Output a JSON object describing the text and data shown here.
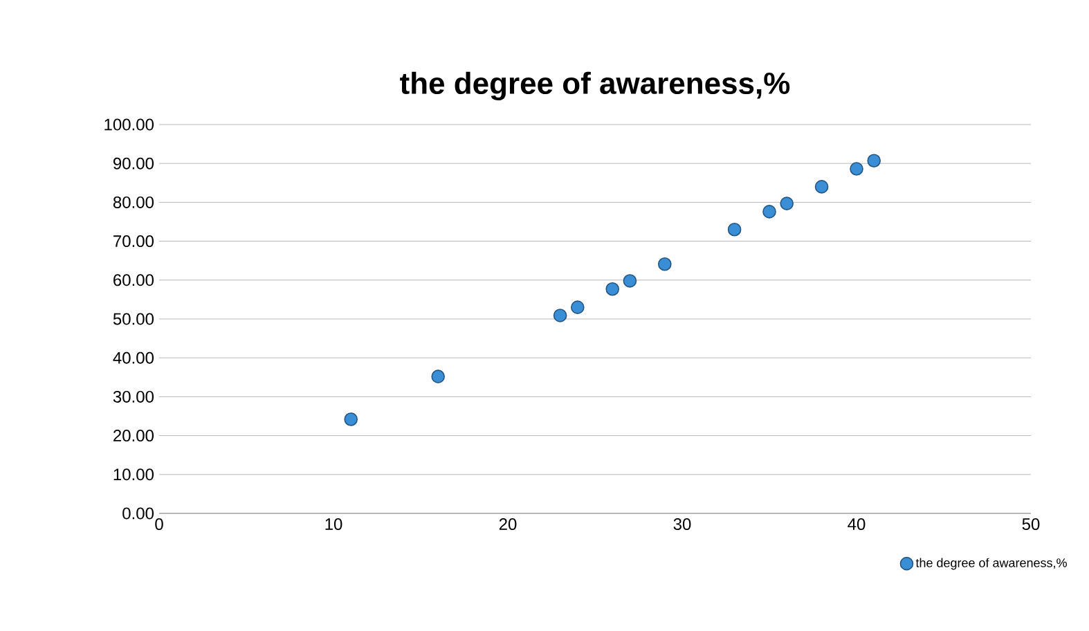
{
  "chart_data": {
    "type": "scatter",
    "title": "the degree of awareness,%",
    "x": [
      11,
      16,
      23,
      24,
      26,
      27,
      29,
      33,
      35,
      36,
      38,
      40,
      41
    ],
    "series": [
      {
        "name": "the degree of awareness,%",
        "color": "#3a8ed6",
        "values": [
          24.2,
          35.2,
          50.9,
          53.0,
          57.7,
          59.8,
          64.1,
          73.0,
          77.6,
          79.7,
          84.0,
          88.6,
          90.7
        ]
      }
    ],
    "xlim": [
      0,
      50
    ],
    "xticks": [
      0,
      10,
      20,
      30,
      40,
      50
    ],
    "ylim": [
      0,
      100
    ],
    "yticks": [
      {
        "value": 0,
        "label": "0.00"
      },
      {
        "value": 10,
        "label": "10.00"
      },
      {
        "value": 20,
        "label": "20.00"
      },
      {
        "value": 30,
        "label": "30.00"
      },
      {
        "value": 40,
        "label": "40.00"
      },
      {
        "value": 50,
        "label": "50.00"
      },
      {
        "value": 60,
        "label": "60.00"
      },
      {
        "value": 70,
        "label": "70.00"
      },
      {
        "value": 80,
        "label": "80.00"
      },
      {
        "value": 90,
        "label": "90.00"
      },
      {
        "value": 100,
        "label": "100.00"
      }
    ],
    "grid": "y",
    "legend": "bottom right",
    "marker": "circle"
  }
}
